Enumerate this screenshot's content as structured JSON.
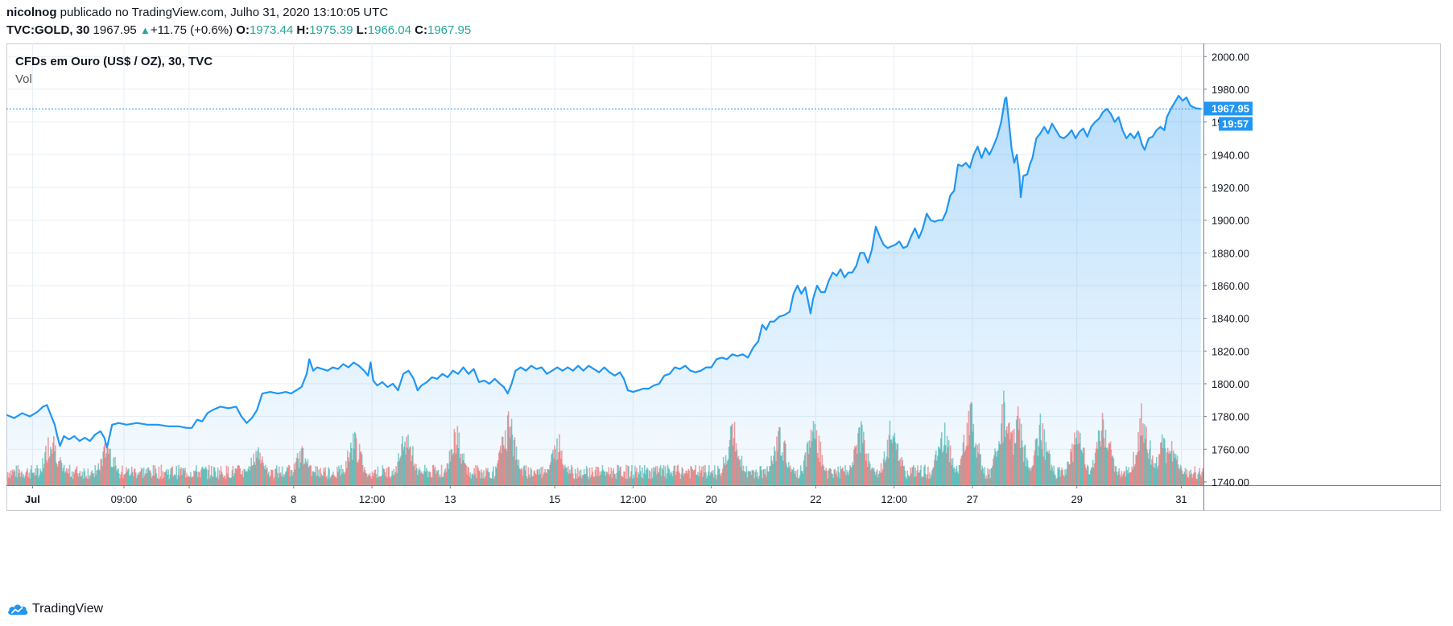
{
  "header": {
    "author": "nicolnog",
    "published": "publicado no TradingView.com, Julho 31, 2020 13:10:05 UTC"
  },
  "ticker": {
    "symbol": "TVC:GOLD, 30",
    "last": "1967.95",
    "change": "+11.75 (+0.6%)",
    "open_label": "O:",
    "open": "1973.44",
    "high_label": "H:",
    "high": "1975.39",
    "low_label": "L:",
    "low": "1966.04",
    "close_label": "C:",
    "close": "1967.95",
    "up_icon": "triangle-up-icon"
  },
  "legend": {
    "title": "CFDs em Ouro (US$ / OZ), 30, TVC",
    "volume": "Vol"
  },
  "price_tag": {
    "price": "1967.95",
    "countdown": "19:57"
  },
  "footer": {
    "brand": "TradingView",
    "icon": "tradingview-cloud-icon"
  },
  "colors": {
    "line": "#2196f3",
    "area": "#2196f3",
    "vol_up": "#26a69a",
    "vol_down": "#ef5350",
    "grid": "#e9eef5",
    "tag": "#2196f3"
  },
  "chart_data": {
    "type": "area",
    "title": "CFDs em Ouro (US$ / OZ), 30, TVC",
    "xlabel": "",
    "ylabel": "",
    "ylim": [
      1738,
      2008
    ],
    "y_ticks": [
      "2000.00",
      "1980.00",
      "1960.00",
      "1940.00",
      "1920.00",
      "1900.00",
      "1880.00",
      "1860.00",
      "1840.00",
      "1820.00",
      "1800.00",
      "1780.00",
      "1760.00",
      "1740.00"
    ],
    "x_ticks": [
      {
        "label": "Jul",
        "bold": true,
        "at": 1.0
      },
      {
        "label": "09:00",
        "bold": false,
        "at": 4.5
      },
      {
        "label": "6",
        "bold": false,
        "at": 7.0
      },
      {
        "label": "8",
        "bold": false,
        "at": 11.0
      },
      {
        "label": "12:00",
        "bold": false,
        "at": 14.0
      },
      {
        "label": "13",
        "bold": false,
        "at": 17.0
      },
      {
        "label": "15",
        "bold": false,
        "at": 21.0
      },
      {
        "label": "12:00",
        "bold": false,
        "at": 24.0
      },
      {
        "label": "20",
        "bold": false,
        "at": 27.0
      },
      {
        "label": "22",
        "bold": false,
        "at": 31.0
      },
      {
        "label": "12:00",
        "bold": false,
        "at": 34.0
      },
      {
        "label": "27",
        "bold": false,
        "at": 37.0
      },
      {
        "label": "29",
        "bold": false,
        "at": 41.0
      },
      {
        "label": "31",
        "bold": false,
        "at": 45.0
      }
    ],
    "x_range": [
      0.0,
      45.85
    ],
    "last_price": 1967.95,
    "series": [
      {
        "points": [
          [
            0.0,
            1781
          ],
          [
            0.3,
            1779
          ],
          [
            0.6,
            1782
          ],
          [
            0.9,
            1780
          ],
          [
            1.2,
            1783
          ],
          [
            1.4,
            1786
          ],
          [
            1.55,
            1787
          ],
          [
            1.7,
            1781
          ],
          [
            1.85,
            1775
          ],
          [
            1.95,
            1768
          ],
          [
            2.05,
            1762
          ],
          [
            2.2,
            1768
          ],
          [
            2.4,
            1766
          ],
          [
            2.6,
            1768
          ],
          [
            2.8,
            1765
          ],
          [
            3.0,
            1767
          ],
          [
            3.2,
            1765
          ],
          [
            3.4,
            1769
          ],
          [
            3.6,
            1771
          ],
          [
            3.75,
            1767
          ],
          [
            3.85,
            1761
          ],
          [
            3.95,
            1768
          ],
          [
            4.05,
            1775
          ],
          [
            4.3,
            1776
          ],
          [
            4.6,
            1775
          ],
          [
            5.0,
            1776
          ],
          [
            5.4,
            1775
          ],
          [
            5.8,
            1775
          ],
          [
            6.2,
            1774
          ],
          [
            6.6,
            1774
          ],
          [
            6.9,
            1773
          ],
          [
            7.1,
            1773
          ],
          [
            7.3,
            1778
          ],
          [
            7.5,
            1777
          ],
          [
            7.7,
            1782
          ],
          [
            7.9,
            1784
          ],
          [
            8.2,
            1786
          ],
          [
            8.5,
            1785
          ],
          [
            8.8,
            1786
          ],
          [
            9.0,
            1780
          ],
          [
            9.2,
            1776
          ],
          [
            9.4,
            1779
          ],
          [
            9.6,
            1784
          ],
          [
            9.8,
            1794
          ],
          [
            10.1,
            1795
          ],
          [
            10.4,
            1794
          ],
          [
            10.7,
            1795
          ],
          [
            10.9,
            1794
          ],
          [
            11.1,
            1796
          ],
          [
            11.3,
            1798
          ],
          [
            11.5,
            1806
          ],
          [
            11.6,
            1815
          ],
          [
            11.75,
            1808
          ],
          [
            11.9,
            1810
          ],
          [
            12.1,
            1809
          ],
          [
            12.3,
            1808
          ],
          [
            12.5,
            1810
          ],
          [
            12.7,
            1809
          ],
          [
            12.9,
            1812
          ],
          [
            13.1,
            1810
          ],
          [
            13.3,
            1813
          ],
          [
            13.5,
            1811
          ],
          [
            13.7,
            1808
          ],
          [
            13.85,
            1805
          ],
          [
            13.95,
            1813
          ],
          [
            14.05,
            1802
          ],
          [
            14.2,
            1799
          ],
          [
            14.4,
            1801
          ],
          [
            14.6,
            1798
          ],
          [
            14.8,
            1800
          ],
          [
            15.0,
            1796
          ],
          [
            15.2,
            1806
          ],
          [
            15.4,
            1808
          ],
          [
            15.6,
            1803
          ],
          [
            15.75,
            1796
          ],
          [
            15.9,
            1799
          ],
          [
            16.1,
            1801
          ],
          [
            16.3,
            1804
          ],
          [
            16.5,
            1803
          ],
          [
            16.7,
            1806
          ],
          [
            16.9,
            1804
          ],
          [
            17.1,
            1808
          ],
          [
            17.3,
            1806
          ],
          [
            17.5,
            1810
          ],
          [
            17.7,
            1806
          ],
          [
            17.9,
            1809
          ],
          [
            18.1,
            1801
          ],
          [
            18.3,
            1802
          ],
          [
            18.5,
            1800
          ],
          [
            18.7,
            1803
          ],
          [
            18.9,
            1800
          ],
          [
            19.05,
            1798
          ],
          [
            19.2,
            1794
          ],
          [
            19.35,
            1800
          ],
          [
            19.5,
            1808
          ],
          [
            19.7,
            1810
          ],
          [
            19.9,
            1808
          ],
          [
            20.1,
            1811
          ],
          [
            20.3,
            1809
          ],
          [
            20.5,
            1810
          ],
          [
            20.7,
            1806
          ],
          [
            20.9,
            1808
          ],
          [
            21.1,
            1810
          ],
          [
            21.3,
            1808
          ],
          [
            21.5,
            1810
          ],
          [
            21.7,
            1808
          ],
          [
            21.9,
            1811
          ],
          [
            22.1,
            1808
          ],
          [
            22.3,
            1811
          ],
          [
            22.5,
            1809
          ],
          [
            22.7,
            1807
          ],
          [
            22.9,
            1810
          ],
          [
            23.1,
            1807
          ],
          [
            23.3,
            1805
          ],
          [
            23.5,
            1807
          ],
          [
            23.65,
            1803
          ],
          [
            23.8,
            1796
          ],
          [
            24.0,
            1795
          ],
          [
            24.2,
            1796
          ],
          [
            24.4,
            1797
          ],
          [
            24.6,
            1797
          ],
          [
            24.8,
            1799
          ],
          [
            25.0,
            1800
          ],
          [
            25.2,
            1805
          ],
          [
            25.4,
            1806
          ],
          [
            25.6,
            1810
          ],
          [
            25.8,
            1809
          ],
          [
            26.0,
            1811
          ],
          [
            26.2,
            1808
          ],
          [
            26.4,
            1807
          ],
          [
            26.6,
            1808
          ],
          [
            26.8,
            1810
          ],
          [
            27.0,
            1810
          ],
          [
            27.2,
            1815
          ],
          [
            27.4,
            1816
          ],
          [
            27.6,
            1815
          ],
          [
            27.8,
            1818
          ],
          [
            28.0,
            1817
          ],
          [
            28.2,
            1818
          ],
          [
            28.4,
            1816
          ],
          [
            28.6,
            1822
          ],
          [
            28.8,
            1826
          ],
          [
            28.95,
            1836
          ],
          [
            29.1,
            1833
          ],
          [
            29.25,
            1838
          ],
          [
            29.4,
            1838
          ],
          [
            29.6,
            1841
          ],
          [
            29.8,
            1842
          ],
          [
            30.0,
            1844
          ],
          [
            30.15,
            1855
          ],
          [
            30.3,
            1860
          ],
          [
            30.45,
            1855
          ],
          [
            30.6,
            1859
          ],
          [
            30.7,
            1851
          ],
          [
            30.8,
            1843
          ],
          [
            30.9,
            1852
          ],
          [
            31.05,
            1860
          ],
          [
            31.2,
            1856
          ],
          [
            31.35,
            1856
          ],
          [
            31.5,
            1863
          ],
          [
            31.65,
            1868
          ],
          [
            31.8,
            1866
          ],
          [
            31.95,
            1870
          ],
          [
            32.1,
            1865
          ],
          [
            32.25,
            1868
          ],
          [
            32.4,
            1868
          ],
          [
            32.55,
            1872
          ],
          [
            32.7,
            1880
          ],
          [
            32.85,
            1880
          ],
          [
            33.0,
            1874
          ],
          [
            33.15,
            1882
          ],
          [
            33.3,
            1896
          ],
          [
            33.45,
            1890
          ],
          [
            33.6,
            1885
          ],
          [
            33.75,
            1883
          ],
          [
            33.9,
            1884
          ],
          [
            34.05,
            1885
          ],
          [
            34.2,
            1887
          ],
          [
            34.35,
            1883
          ],
          [
            34.5,
            1884
          ],
          [
            34.65,
            1890
          ],
          [
            34.8,
            1895
          ],
          [
            34.95,
            1889
          ],
          [
            35.1,
            1895
          ],
          [
            35.25,
            1904
          ],
          [
            35.4,
            1900
          ],
          [
            35.55,
            1899
          ],
          [
            35.7,
            1900
          ],
          [
            35.85,
            1900
          ],
          [
            36.0,
            1905
          ],
          [
            36.15,
            1915
          ],
          [
            36.3,
            1918
          ],
          [
            36.45,
            1934
          ],
          [
            36.6,
            1933
          ],
          [
            36.75,
            1935
          ],
          [
            36.9,
            1932
          ],
          [
            37.05,
            1940
          ],
          [
            37.2,
            1945
          ],
          [
            37.35,
            1938
          ],
          [
            37.5,
            1944
          ],
          [
            37.65,
            1940
          ],
          [
            37.8,
            1945
          ],
          [
            37.95,
            1951
          ],
          [
            38.1,
            1960
          ],
          [
            38.25,
            1974
          ],
          [
            38.3,
            1975
          ],
          [
            38.4,
            1960
          ],
          [
            38.5,
            1944
          ],
          [
            38.6,
            1935
          ],
          [
            38.7,
            1940
          ],
          [
            38.8,
            1927
          ],
          [
            38.85,
            1914
          ],
          [
            38.95,
            1927
          ],
          [
            39.1,
            1928
          ],
          [
            39.2,
            1934
          ],
          [
            39.3,
            1938
          ],
          [
            39.45,
            1950
          ],
          [
            39.6,
            1953
          ],
          [
            39.75,
            1957
          ],
          [
            39.9,
            1953
          ],
          [
            40.05,
            1959
          ],
          [
            40.2,
            1955
          ],
          [
            40.35,
            1951
          ],
          [
            40.5,
            1950
          ],
          [
            40.65,
            1952
          ],
          [
            40.8,
            1955
          ],
          [
            40.95,
            1950
          ],
          [
            41.1,
            1954
          ],
          [
            41.25,
            1956
          ],
          [
            41.4,
            1951
          ],
          [
            41.55,
            1957
          ],
          [
            41.7,
            1960
          ],
          [
            41.85,
            1962
          ],
          [
            42.0,
            1966
          ],
          [
            42.15,
            1968
          ],
          [
            42.3,
            1965
          ],
          [
            42.45,
            1960
          ],
          [
            42.6,
            1963
          ],
          [
            42.75,
            1955
          ],
          [
            42.9,
            1950
          ],
          [
            43.05,
            1953
          ],
          [
            43.2,
            1950
          ],
          [
            43.35,
            1954
          ],
          [
            43.5,
            1946
          ],
          [
            43.6,
            1943
          ],
          [
            43.75,
            1950
          ],
          [
            43.9,
            1951
          ],
          [
            44.05,
            1955
          ],
          [
            44.2,
            1957
          ],
          [
            44.35,
            1955
          ],
          [
            44.45,
            1963
          ],
          [
            44.6,
            1968
          ],
          [
            44.75,
            1972
          ],
          [
            44.9,
            1976
          ],
          [
            45.05,
            1973
          ],
          [
            45.2,
            1975
          ],
          [
            45.35,
            1970
          ],
          [
            45.55,
            1968.4
          ],
          [
            45.75,
            1967.95
          ]
        ]
      }
    ],
    "volume_events": [
      {
        "x": 1.7,
        "height": 0.55
      },
      {
        "x": 3.85,
        "height": 0.45
      },
      {
        "x": 9.6,
        "height": 0.4
      },
      {
        "x": 11.3,
        "height": 0.38
      },
      {
        "x": 13.3,
        "height": 0.52
      },
      {
        "x": 15.3,
        "height": 0.55
      },
      {
        "x": 17.2,
        "height": 0.55
      },
      {
        "x": 19.2,
        "height": 0.7
      },
      {
        "x": 21.1,
        "height": 0.48
      },
      {
        "x": 27.8,
        "height": 0.6
      },
      {
        "x": 29.6,
        "height": 0.55
      },
      {
        "x": 30.9,
        "height": 0.65
      },
      {
        "x": 32.7,
        "height": 0.55
      },
      {
        "x": 33.9,
        "height": 0.65
      },
      {
        "x": 35.9,
        "height": 0.62
      },
      {
        "x": 36.9,
        "height": 0.78
      },
      {
        "x": 38.2,
        "height": 0.82
      },
      {
        "x": 38.7,
        "height": 0.7
      },
      {
        "x": 39.6,
        "height": 0.62
      },
      {
        "x": 41.0,
        "height": 0.55
      },
      {
        "x": 42.0,
        "height": 0.68
      },
      {
        "x": 43.5,
        "height": 0.74
      },
      {
        "x": 44.3,
        "height": 0.48
      },
      {
        "x": 44.6,
        "height": 0.42
      }
    ]
  }
}
